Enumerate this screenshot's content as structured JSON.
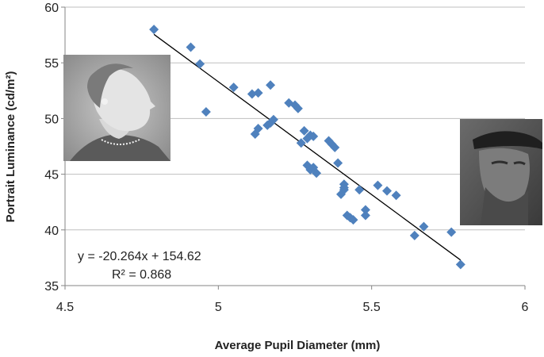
{
  "chart_data": {
    "type": "scatter",
    "title": "",
    "xlabel": "Average Pupil Diameter (mm)",
    "ylabel": "Portrait Luminance (cd/m²)",
    "xlim": [
      4.5,
      6
    ],
    "ylim": [
      35,
      60
    ],
    "xticks": [
      4.5,
      5,
      5.5,
      6
    ],
    "yticks": [
      35,
      40,
      45,
      50,
      55,
      60
    ],
    "xtick_labels": [
      "4.5",
      "5",
      "5.5",
      "6"
    ],
    "ytick_labels": [
      "35",
      "40",
      "45",
      "50",
      "55",
      "60"
    ],
    "grid": "horizontal",
    "legend": "none",
    "marker_color": "#4F81BD",
    "marker_shape": "diamond",
    "trendline": {
      "type": "linear",
      "slope": -20.264,
      "intercept": 154.62,
      "color": "#000000"
    },
    "annotations": {
      "equation": "y = -20.264x + 154.62",
      "r_squared": "R² = 0.868"
    },
    "series": [
      {
        "x": [
          4.79,
          4.91,
          4.94,
          4.96,
          5.05,
          5.11,
          5.13,
          5.17,
          5.12,
          5.13,
          5.16,
          5.17,
          5.18,
          5.23,
          5.25,
          5.26,
          5.27,
          5.28,
          5.29,
          5.3,
          5.31,
          5.29,
          5.3,
          5.31,
          5.32,
          5.36,
          5.37,
          5.38,
          5.39,
          5.4,
          5.41,
          5.41,
          5.41,
          5.42,
          5.43,
          5.44,
          5.46,
          5.48,
          5.48,
          5.52,
          5.55,
          5.58,
          5.64,
          5.67,
          5.76,
          5.79
        ],
        "y": [
          58.0,
          56.4,
          54.9,
          50.6,
          52.8,
          52.2,
          52.3,
          53.0,
          48.6,
          49.1,
          49.4,
          49.6,
          49.9,
          51.4,
          51.2,
          50.9,
          47.8,
          48.9,
          48.2,
          48.5,
          48.4,
          45.8,
          45.4,
          45.6,
          45.1,
          48.0,
          47.7,
          47.4,
          46.0,
          43.2,
          43.6,
          44.1,
          43.8,
          41.3,
          41.1,
          40.9,
          43.6,
          41.3,
          41.8,
          44.0,
          43.5,
          43.1,
          39.5,
          40.3,
          39.8,
          36.9
        ]
      }
    ]
  },
  "images": [
    {
      "name": "portrait-woman-image",
      "description_icon": "woman-portrait-icon"
    },
    {
      "name": "portrait-man-image",
      "description_icon": "man-portrait-icon"
    }
  ]
}
